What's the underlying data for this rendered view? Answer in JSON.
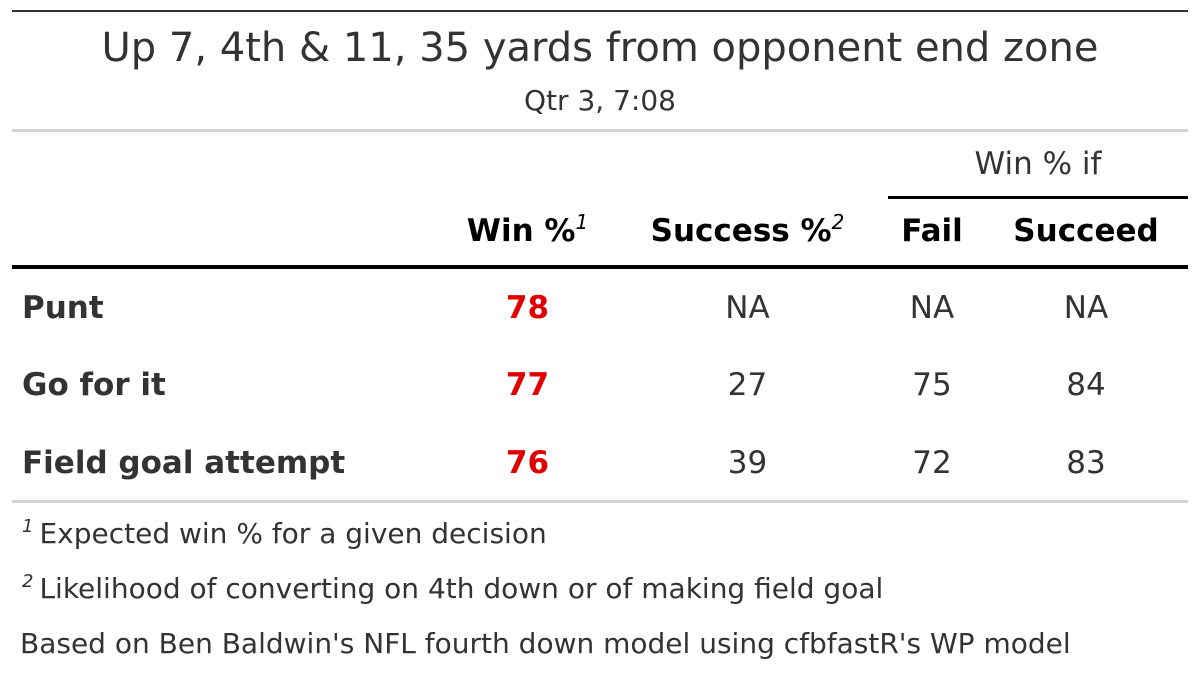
{
  "table": {
    "title": "Up 7, 4th & 11, 35 yards from opponent end zone",
    "subtitle": "Qtr 3, 7:08",
    "spanner": "Win % if",
    "columns": {
      "win": "Win %",
      "win_mark": "1",
      "success": "Success %",
      "success_mark": "2",
      "fail": "Fail",
      "succeed": "Succeed"
    },
    "rows": [
      {
        "label": "Punt",
        "win": "78",
        "success": "NA",
        "fail": "NA",
        "succeed": "NA"
      },
      {
        "label": "Go for it",
        "win": "77",
        "success": "27",
        "fail": "75",
        "succeed": "84"
      },
      {
        "label": "Field goal attempt",
        "win": "76",
        "success": "39",
        "fail": "72",
        "succeed": "83"
      }
    ],
    "footnotes": [
      {
        "mark": "1",
        "text": "Expected win % for a given decision"
      },
      {
        "mark": "2",
        "text": "Likelihood of converting on 4th down or of making field goal"
      }
    ],
    "source": "Based on Ben Baldwin's NFL fourth down model using cfbfastR's WP model"
  },
  "colors": {
    "highlight": "#e00000",
    "text": "#333333",
    "rule_strong": "#000000",
    "rule_light": "#d3d3d3"
  },
  "chart_data": {
    "type": "table",
    "title": "Up 7, 4th & 11, 35 yards from opponent end zone",
    "subtitle": "Qtr 3, 7:08",
    "columns": [
      "Win %",
      "Success %",
      "Fail",
      "Succeed"
    ],
    "column_group": {
      "label": "Win % if",
      "columns": [
        "Fail",
        "Succeed"
      ]
    },
    "rows": [
      {
        "label": "Punt",
        "values": [
          78,
          null,
          null,
          null
        ]
      },
      {
        "label": "Go for it",
        "values": [
          77,
          27,
          75,
          84
        ]
      },
      {
        "label": "Field goal attempt",
        "values": [
          76,
          39,
          72,
          83
        ]
      }
    ]
  }
}
